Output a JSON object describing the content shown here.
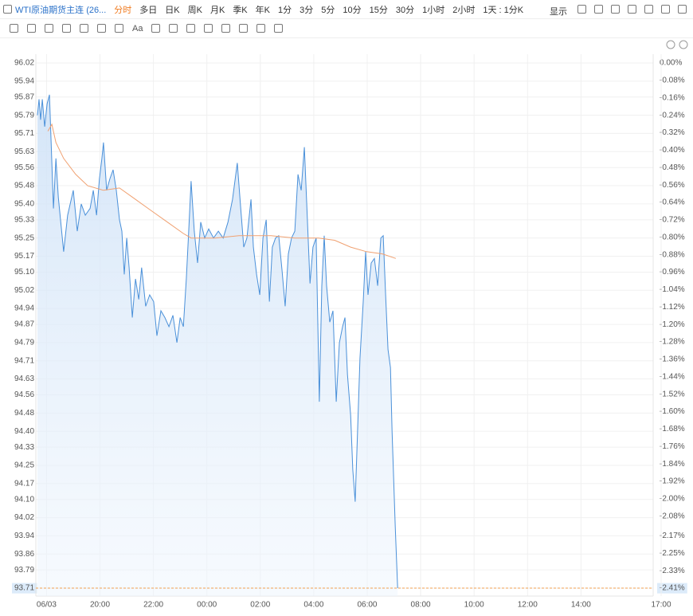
{
  "toolbar": {
    "title": "WTI原油期货主连 (26...",
    "periods": [
      "分时",
      "多日",
      "日K",
      "周K",
      "月K",
      "季K",
      "年K",
      "1分",
      "3分",
      "5分",
      "10分",
      "15分",
      "30分",
      "1小时",
      "2小时",
      "1天 : 1分K"
    ],
    "display": "显示",
    "text_tool": "Aa"
  },
  "chart_data": {
    "type": "line",
    "grid": true,
    "xlim": [
      -0.4,
      23
    ],
    "xticks": [
      {
        "value": 0,
        "label": "06/03"
      },
      {
        "value": 2,
        "label": "20:00"
      },
      {
        "value": 4,
        "label": "22:00"
      },
      {
        "value": 6,
        "label": "00:00"
      },
      {
        "value": 8,
        "label": "02:00"
      },
      {
        "value": 10,
        "label": "04:00"
      },
      {
        "value": 12,
        "label": "06:00"
      },
      {
        "value": 14,
        "label": "08:00"
      },
      {
        "value": 16,
        "label": "10:00"
      },
      {
        "value": 18,
        "label": "12:00"
      },
      {
        "value": 20,
        "label": "14:00"
      },
      {
        "value": 23,
        "label": "17:00"
      }
    ],
    "ylim": [
      93.71,
      96.02
    ],
    "yticks": [
      96.02,
      95.94,
      95.87,
      95.79,
      95.71,
      95.63,
      95.56,
      95.48,
      {
        "value": 95.4,
        "label": "95.40"
      },
      95.33,
      95.25,
      95.17,
      {
        "value": 95.1,
        "label": "95.10"
      },
      95.02,
      94.94,
      94.87,
      94.79,
      94.71,
      94.63,
      94.56,
      94.48,
      {
        "value": 94.4,
        "label": "94.40"
      },
      94.33,
      94.25,
      94.17,
      {
        "value": 94.1,
        "label": "94.10"
      },
      94.02,
      93.94,
      93.86,
      93.79,
      93.71
    ],
    "y2lim": [
      -2.41,
      0
    ],
    "y2ticks": [
      {
        "value": 0,
        "label": "0.00%"
      },
      {
        "value": -0.08,
        "label": "-0.08%"
      },
      {
        "value": -0.16,
        "label": "-0.16%"
      },
      {
        "value": -0.24,
        "label": "-0.24%"
      },
      {
        "value": -0.32,
        "label": "-0.32%"
      },
      {
        "value": -0.4,
        "label": "-0.40%"
      },
      {
        "value": -0.48,
        "label": "-0.48%"
      },
      {
        "value": -0.56,
        "label": "-0.56%"
      },
      {
        "value": -0.64,
        "label": "-0.64%"
      },
      {
        "value": -0.72,
        "label": "-0.72%"
      },
      {
        "value": -0.8,
        "label": "-0.80%"
      },
      {
        "value": -0.88,
        "label": "-0.88%"
      },
      {
        "value": -0.96,
        "label": "-0.96%"
      },
      {
        "value": -1.04,
        "label": "-1.04%"
      },
      {
        "value": -1.12,
        "label": "-1.12%"
      },
      {
        "value": -1.2,
        "label": "-1.20%"
      },
      {
        "value": -1.28,
        "label": "-1.28%"
      },
      {
        "value": -1.36,
        "label": "-1.36%"
      },
      {
        "value": -1.44,
        "label": "-1.44%"
      },
      {
        "value": -1.52,
        "label": "-1.52%"
      },
      {
        "value": -1.6,
        "label": "-1.60%"
      },
      {
        "value": -1.68,
        "label": "-1.68%"
      },
      {
        "value": -1.76,
        "label": "-1.76%"
      },
      {
        "value": -1.84,
        "label": "-1.84%"
      },
      {
        "value": -1.92,
        "label": "-1.92%"
      },
      {
        "value": -2.0,
        "label": "-2.00%"
      },
      {
        "value": -2.08,
        "label": "-2.08%"
      },
      {
        "value": -2.17,
        "label": "-2.17%"
      },
      {
        "value": -2.25,
        "label": "-2.25%"
      },
      {
        "value": -2.33,
        "label": "-2.33%"
      },
      {
        "value": -2.41,
        "label": "-2.41%"
      }
    ],
    "series": [
      {
        "color": "#4a90d9",
        "area": true,
        "x": [
          -0.34,
          -0.28,
          -0.22,
          -0.16,
          -0.07,
          0.02,
          0.11,
          0.17,
          0.26,
          0.35,
          0.44,
          0.64,
          0.79,
          1.0,
          1.15,
          1.3,
          1.45,
          1.63,
          1.75,
          1.87,
          1.98,
          2.07,
          2.13,
          2.25,
          2.37,
          2.49,
          2.61,
          2.73,
          2.82,
          2.91,
          3.0,
          3.09,
          3.21,
          3.33,
          3.45,
          3.56,
          3.71,
          3.86,
          4.01,
          4.13,
          4.28,
          4.43,
          4.58,
          4.73,
          4.88,
          5.0,
          5.12,
          5.23,
          5.32,
          5.41,
          5.53,
          5.65,
          5.77,
          5.92,
          6.07,
          6.25,
          6.43,
          6.61,
          6.79,
          6.96,
          7.14,
          7.26,
          7.38,
          7.5,
          7.65,
          7.74,
          7.86,
          7.98,
          8.1,
          8.22,
          8.34,
          8.45,
          8.57,
          8.69,
          8.81,
          8.93,
          9.05,
          9.17,
          9.29,
          9.41,
          9.53,
          9.65,
          9.74,
          9.86,
          9.97,
          10.09,
          10.21,
          10.3,
          10.39,
          10.48,
          10.6,
          10.72,
          10.84,
          10.96,
          11.08,
          11.17,
          11.26,
          11.38,
          11.46,
          11.55,
          11.64,
          11.73,
          11.85,
          11.94,
          12.03,
          12.15,
          12.27,
          12.39,
          12.51,
          12.6,
          12.69,
          12.78,
          12.87,
          12.93,
          12.99,
          13.05,
          13.14
        ],
        "values": [
          95.79,
          95.86,
          95.77,
          95.86,
          95.74,
          95.84,
          95.88,
          95.68,
          95.38,
          95.6,
          95.43,
          95.19,
          95.35,
          95.46,
          95.28,
          95.4,
          95.35,
          95.38,
          95.46,
          95.35,
          95.51,
          95.6,
          95.67,
          95.46,
          95.51,
          95.55,
          95.46,
          95.33,
          95.28,
          95.09,
          95.25,
          95.12,
          94.9,
          95.07,
          94.98,
          95.12,
          94.95,
          95.0,
          94.97,
          94.82,
          94.93,
          94.9,
          94.86,
          94.91,
          94.79,
          94.9,
          94.86,
          95.07,
          95.28,
          95.5,
          95.28,
          95.14,
          95.32,
          95.25,
          95.29,
          95.25,
          95.28,
          95.25,
          95.32,
          95.42,
          95.58,
          95.39,
          95.21,
          95.25,
          95.42,
          95.21,
          95.09,
          95.0,
          95.25,
          95.33,
          94.97,
          95.21,
          95.25,
          95.26,
          95.11,
          94.95,
          95.18,
          95.25,
          95.28,
          95.53,
          95.46,
          95.65,
          95.39,
          95.05,
          95.21,
          95.25,
          94.53,
          95.04,
          95.26,
          95.04,
          94.88,
          94.93,
          94.53,
          94.79,
          94.86,
          94.9,
          94.65,
          94.47,
          94.23,
          94.09,
          94.4,
          94.72,
          94.97,
          95.19,
          95.0,
          95.14,
          95.16,
          95.04,
          95.25,
          95.26,
          95.0,
          94.76,
          94.68,
          94.4,
          94.19,
          93.98,
          93.71
        ]
      },
      {
        "color": "#f0a070",
        "x": [
          0.05,
          0.2,
          0.35,
          0.64,
          1.09,
          1.54,
          2.13,
          2.73,
          3.33,
          3.92,
          4.52,
          5.12,
          5.41,
          6.31,
          7.2,
          8.4,
          9.29,
          10.18,
          10.78,
          11.38,
          11.97,
          12.57,
          13.07
        ],
        "values": [
          95.72,
          95.75,
          95.67,
          95.6,
          95.53,
          95.48,
          95.46,
          95.47,
          95.42,
          95.37,
          95.32,
          95.27,
          95.25,
          95.25,
          95.26,
          95.26,
          95.25,
          95.25,
          95.24,
          95.21,
          95.19,
          95.18,
          95.16
        ]
      }
    ]
  }
}
